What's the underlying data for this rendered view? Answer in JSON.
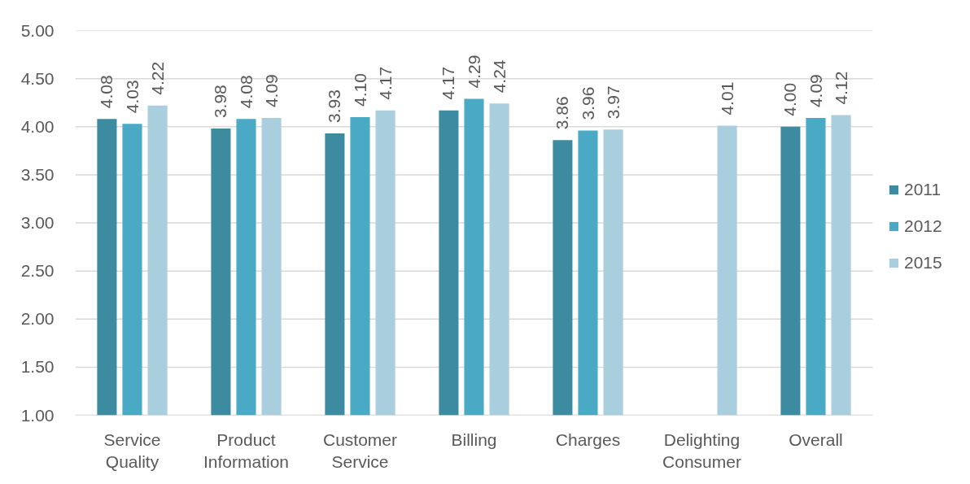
{
  "chart_data": {
    "type": "bar",
    "categories": [
      "Service Quality",
      "Product Information",
      "Customer Service",
      "Billing",
      "Charges",
      "Delighting Consumer",
      "Overall"
    ],
    "series": [
      {
        "name": "2011",
        "color": "#3c8ba1",
        "values": [
          4.08,
          3.98,
          3.93,
          4.17,
          3.86,
          null,
          4.0
        ],
        "value_labels": [
          "4.08",
          "3.98",
          "3.93",
          "4.17",
          "3.86",
          null,
          "4.00"
        ]
      },
      {
        "name": "2012",
        "color": "#4aaac5",
        "values": [
          4.03,
          4.08,
          4.1,
          4.29,
          3.96,
          null,
          4.09
        ],
        "value_labels": [
          "4.03",
          "4.08",
          "4.10",
          "4.29",
          "3.96",
          null,
          "4.09"
        ]
      },
      {
        "name": "2015",
        "color": "#a9cedd",
        "values": [
          4.22,
          4.09,
          4.17,
          4.24,
          3.97,
          4.01,
          4.12
        ],
        "value_labels": [
          "4.22",
          "4.09",
          "4.17",
          "4.24",
          "3.97",
          "4.01",
          "4.12"
        ]
      }
    ],
    "ylim": [
      1,
      5
    ],
    "yticks": [
      {
        "value": 1,
        "label": "1.00"
      },
      {
        "value": 1.5,
        "label": "1.50"
      },
      {
        "value": 2,
        "label": "2.00"
      },
      {
        "value": 2.5,
        "label": "2.50"
      },
      {
        "value": 3,
        "label": "3.00"
      },
      {
        "value": 3.5,
        "label": "3.50"
      },
      {
        "value": 4,
        "label": "4.00"
      },
      {
        "value": 4.5,
        "label": "4.50"
      },
      {
        "value": 5,
        "label": "5.00"
      }
    ],
    "grid": "y",
    "legend": "right"
  }
}
